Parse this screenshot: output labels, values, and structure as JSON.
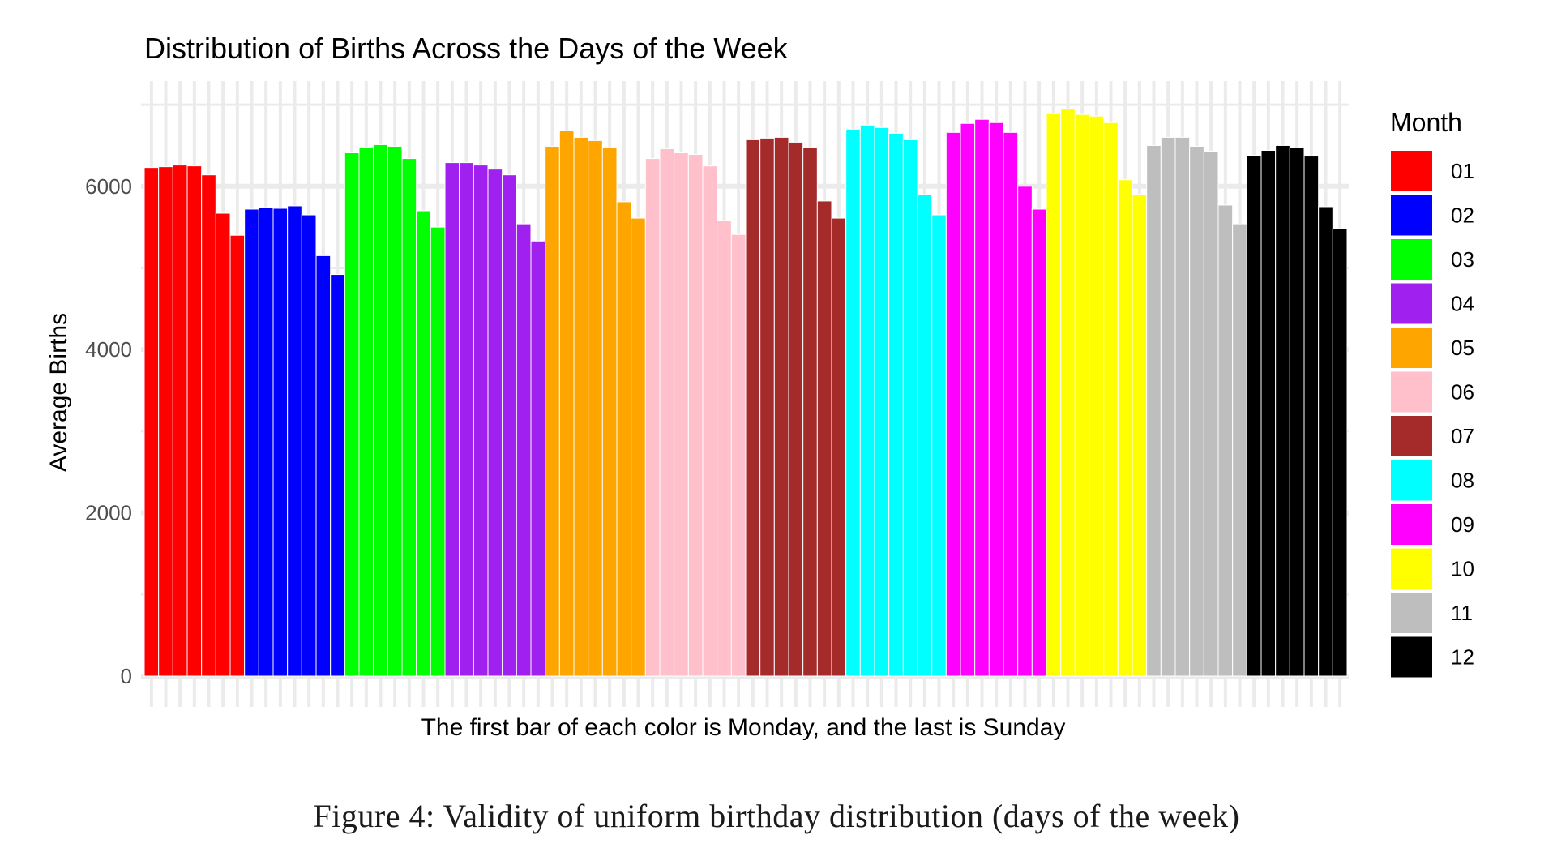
{
  "caption": "Figure 4: Validity of uniform birthday distribution (days of the week)",
  "chart_data": {
    "type": "bar",
    "title": "Distribution of Births Across the Days of the Week",
    "xlabel": "The first bar of each color is Monday, and the last is Sunday",
    "ylabel": "Average Births",
    "ylim": [
      0,
      7200
    ],
    "yticks": [
      0,
      2000,
      4000,
      6000
    ],
    "ytick_labels": [
      "0",
      "2000",
      "4000",
      "6000"
    ],
    "grid": true,
    "legend": {
      "title": "Month",
      "placement": "right"
    },
    "series": [
      {
        "name": "01",
        "color": "#FF0000",
        "values": [
          6230,
          6240,
          6260,
          6250,
          6140,
          5670,
          5400
        ]
      },
      {
        "name": "02",
        "color": "#0000FF",
        "values": [
          5720,
          5740,
          5730,
          5760,
          5650,
          5150,
          4920
        ]
      },
      {
        "name": "03",
        "color": "#00FF00",
        "values": [
          6410,
          6480,
          6510,
          6490,
          6340,
          5700,
          5500
        ]
      },
      {
        "name": "04",
        "color": "#A020F0",
        "values": [
          6290,
          6290,
          6260,
          6210,
          6140,
          5540,
          5330
        ]
      },
      {
        "name": "05",
        "color": "#FFA500",
        "values": [
          6490,
          6680,
          6600,
          6560,
          6470,
          5810,
          5610
        ]
      },
      {
        "name": "06",
        "color": "#FFC0CB",
        "values": [
          6340,
          6460,
          6410,
          6390,
          6250,
          5580,
          5410
        ]
      },
      {
        "name": "07",
        "color": "#A52A2A",
        "values": [
          6570,
          6590,
          6600,
          6540,
          6470,
          5820,
          5610
        ]
      },
      {
        "name": "08",
        "color": "#00FFFF",
        "values": [
          6700,
          6750,
          6720,
          6650,
          6570,
          5900,
          5650
        ]
      },
      {
        "name": "09",
        "color": "#FF00FF",
        "values": [
          6660,
          6770,
          6820,
          6780,
          6660,
          6000,
          5720
        ]
      },
      {
        "name": "10",
        "color": "#FFFF00",
        "values": [
          6890,
          6950,
          6880,
          6860,
          6780,
          6080,
          5900
        ]
      },
      {
        "name": "11",
        "color": "#BEBEBE",
        "values": [
          6500,
          6600,
          6600,
          6490,
          6430,
          5770,
          5540
        ]
      },
      {
        "name": "12",
        "color": "#000000",
        "values": [
          6380,
          6440,
          6500,
          6470,
          6370,
          5750,
          5480
        ]
      }
    ]
  }
}
